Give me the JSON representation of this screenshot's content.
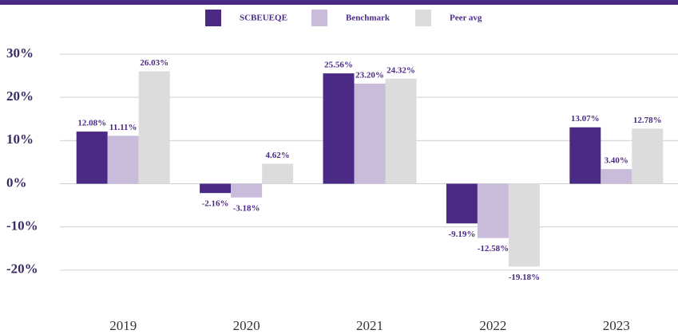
{
  "chart_data": {
    "type": "bar",
    "categories": [
      "2019",
      "2020",
      "2021",
      "2022",
      "2023"
    ],
    "series": [
      {
        "name": "SCBEUEQE",
        "color": "#4b2a86",
        "values": [
          12.08,
          -2.16,
          25.56,
          -9.19,
          13.07
        ],
        "value_labels": [
          "12.08%",
          "-2.16%",
          "25.56%",
          "-9.19%",
          "13.07%"
        ]
      },
      {
        "name": "Benchmark",
        "color": "#c9bcdb",
        "values": [
          11.11,
          -3.18,
          23.2,
          -12.58,
          3.4
        ],
        "value_labels": [
          "11.11%",
          "-3.18%",
          "23.20%",
          "-12.58%",
          "3.40%"
        ]
      },
      {
        "name": "Peer avg",
        "color": "#dcdcdc",
        "values": [
          26.03,
          4.62,
          24.32,
          -19.18,
          12.78
        ],
        "value_labels": [
          "26.03%",
          "4.62%",
          "24.32%",
          "-19.18%",
          "12.78%"
        ]
      }
    ],
    "ylim": [
      -30,
      30
    ],
    "yticks": [
      {
        "value": -20,
        "label": "-20%"
      },
      {
        "value": -10,
        "label": "-10%"
      },
      {
        "value": 0,
        "label": "0%"
      },
      {
        "value": 10,
        "label": "10%"
      },
      {
        "value": 20,
        "label": "20%"
      },
      {
        "value": 30,
        "label": "30%"
      }
    ],
    "grid": true,
    "legend": "top"
  }
}
